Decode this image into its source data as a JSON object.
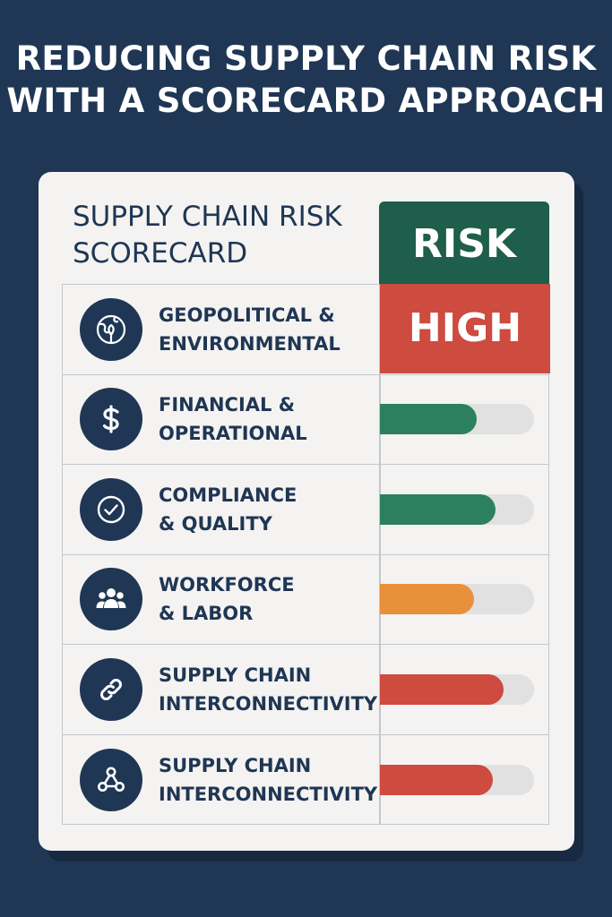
{
  "title": {
    "line1": "REDUCING SUPPLY CHAIN RISK",
    "line2": "WITH A SCORECARD APPROACH"
  },
  "scorecard": {
    "title_line1": "SUPPLY CHAIN RISK",
    "title_line2": "SCORECARD",
    "risk_header": "RISK",
    "rows": [
      {
        "icon": "globe-leaf-icon",
        "line1": "GEOPOLITICAL &",
        "line2": "ENVIRONMENTAL",
        "level_text": "HIGH",
        "level_color": "#cd4b3f"
      },
      {
        "icon": "dollar-icon",
        "line1": "FINANCIAL &",
        "line2": "OPERATIONAL",
        "level": 0.63,
        "level_color": "#2c8060"
      },
      {
        "icon": "check-circle-icon",
        "line1": "COMPLIANCE",
        "line2": "& QUALITY",
        "level": 0.75,
        "level_color": "#2c8060"
      },
      {
        "icon": "people-icon",
        "line1": "WORKFORCE",
        "line2": "& LABOR",
        "level": 0.61,
        "level_color": "#e8903a"
      },
      {
        "icon": "link-icon",
        "line1": "SUPPLY CHAIN",
        "line2": "INTERCONNECTIVITY",
        "level": 0.8,
        "level_color": "#cd4b3f"
      },
      {
        "icon": "network-icon",
        "line1": "SUPPLY CHAIN",
        "line2": "INTERCONNECTIVITY",
        "level": 0.73,
        "level_color": "#cd4b3f"
      }
    ]
  }
}
